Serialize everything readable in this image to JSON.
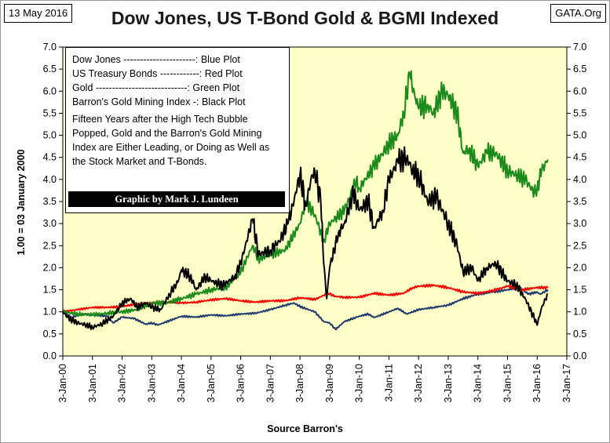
{
  "header": {
    "date": "13 May 2016",
    "source_site": "GATA.Org"
  },
  "legend": {
    "rows": [
      "Dow Jones  ----------------------: Blue Plot",
      "US Treasury Bonds ------------: Red Plot",
      "Gold ----------------------------: Green Plot",
      "Barron's Gold Mining Index -: Black Plot"
    ],
    "note": "Fifteen Years after the High Tech Bubble Popped, Gold and the Barron's Gold Mining Index are Either Leading, or Doing as Well as the Stock Market and T-Bonds.",
    "credit": "Graphic by  Mark J. Lundeen"
  },
  "colors": {
    "plot_background": "#ffffc8",
    "dow": "#1f3a6e",
    "tbond": "#ff0000",
    "gold": "#1a8a1a",
    "bgmi": "#000000"
  },
  "chart_data": {
    "type": "line",
    "title": "Dow Jones, US T-Bond Gold & BGMI Indexed",
    "xlabel": "Source Barron's",
    "ylabel": "1.00 = 03 January 2000",
    "xlim": [
      2000.0,
      2017.0
    ],
    "ylim": [
      0.0,
      7.0
    ],
    "grid": false,
    "y_ticks": [
      "0.0",
      "0.5",
      "1.0",
      "1.5",
      "2.0",
      "2.5",
      "3.0",
      "3.5",
      "4.0",
      "4.5",
      "5.0",
      "5.5",
      "6.0",
      "6.5",
      "7.0"
    ],
    "x_ticks": [
      "3-Jan-00",
      "3-Jan-01",
      "3-Jan-02",
      "3-Jan-03",
      "3-Jan-04",
      "3-Jan-05",
      "3-Jan-06",
      "3-Jan-07",
      "3-Jan-08",
      "3-Jan-09",
      "3-Jan-10",
      "3-Jan-11",
      "3-Jan-12",
      "3-Jan-13",
      "3-Jan-14",
      "3-Jan-15",
      "3-Jan-16",
      "3-Jan-17"
    ],
    "series": [
      {
        "name": "Dow Jones",
        "color": "#1f3a6e",
        "points": [
          [
            2000.0,
            1.0
          ],
          [
            2000.3,
            0.88
          ],
          [
            2000.7,
            0.95
          ],
          [
            2001.0,
            0.93
          ],
          [
            2001.5,
            0.9
          ],
          [
            2001.7,
            0.75
          ],
          [
            2002.0,
            0.88
          ],
          [
            2002.4,
            0.85
          ],
          [
            2002.8,
            0.72
          ],
          [
            2003.0,
            0.75
          ],
          [
            2003.2,
            0.7
          ],
          [
            2003.6,
            0.8
          ],
          [
            2004.0,
            0.9
          ],
          [
            2004.5,
            0.88
          ],
          [
            2005.0,
            0.93
          ],
          [
            2005.5,
            0.91
          ],
          [
            2006.0,
            0.95
          ],
          [
            2006.5,
            0.97
          ],
          [
            2007.0,
            1.05
          ],
          [
            2007.5,
            1.15
          ],
          [
            2007.8,
            1.2
          ],
          [
            2008.0,
            1.12
          ],
          [
            2008.5,
            1.0
          ],
          [
            2008.8,
            0.78
          ],
          [
            2009.0,
            0.75
          ],
          [
            2009.2,
            0.6
          ],
          [
            2009.5,
            0.78
          ],
          [
            2010.0,
            0.9
          ],
          [
            2010.3,
            0.95
          ],
          [
            2010.5,
            0.87
          ],
          [
            2011.0,
            1.0
          ],
          [
            2011.3,
            1.08
          ],
          [
            2011.6,
            0.95
          ],
          [
            2012.0,
            1.05
          ],
          [
            2012.5,
            1.1
          ],
          [
            2013.0,
            1.15
          ],
          [
            2013.5,
            1.3
          ],
          [
            2014.0,
            1.4
          ],
          [
            2014.5,
            1.45
          ],
          [
            2015.0,
            1.5
          ],
          [
            2015.4,
            1.56
          ],
          [
            2015.7,
            1.4
          ],
          [
            2016.0,
            1.45
          ],
          [
            2016.1,
            1.4
          ],
          [
            2016.36,
            1.5
          ]
        ]
      },
      {
        "name": "US Treasury Bonds",
        "color": "#ff0000",
        "points": [
          [
            2000.0,
            1.0
          ],
          [
            2000.5,
            1.05
          ],
          [
            2001.0,
            1.1
          ],
          [
            2001.5,
            1.1
          ],
          [
            2002.0,
            1.12
          ],
          [
            2002.5,
            1.18
          ],
          [
            2003.0,
            1.2
          ],
          [
            2003.5,
            1.22
          ],
          [
            2004.0,
            1.2
          ],
          [
            2004.5,
            1.22
          ],
          [
            2005.0,
            1.27
          ],
          [
            2005.5,
            1.3
          ],
          [
            2006.0,
            1.25
          ],
          [
            2006.5,
            1.22
          ],
          [
            2007.0,
            1.25
          ],
          [
            2007.5,
            1.25
          ],
          [
            2008.0,
            1.32
          ],
          [
            2008.5,
            1.28
          ],
          [
            2008.95,
            1.42
          ],
          [
            2009.2,
            1.35
          ],
          [
            2009.5,
            1.33
          ],
          [
            2010.0,
            1.33
          ],
          [
            2010.5,
            1.42
          ],
          [
            2011.0,
            1.38
          ],
          [
            2011.5,
            1.42
          ],
          [
            2011.8,
            1.55
          ],
          [
            2012.0,
            1.58
          ],
          [
            2012.5,
            1.6
          ],
          [
            2013.0,
            1.55
          ],
          [
            2013.5,
            1.45
          ],
          [
            2014.0,
            1.42
          ],
          [
            2014.5,
            1.48
          ],
          [
            2015.0,
            1.58
          ],
          [
            2015.5,
            1.5
          ],
          [
            2016.0,
            1.55
          ],
          [
            2016.36,
            1.55
          ]
        ]
      },
      {
        "name": "Gold",
        "color": "#1a8a1a",
        "points": [
          [
            2000.0,
            1.0
          ],
          [
            2000.5,
            0.95
          ],
          [
            2001.0,
            0.93
          ],
          [
            2001.5,
            0.97
          ],
          [
            2002.0,
            1.0
          ],
          [
            2002.5,
            1.05
          ],
          [
            2003.0,
            1.2
          ],
          [
            2003.5,
            1.2
          ],
          [
            2004.0,
            1.3
          ],
          [
            2004.5,
            1.4
          ],
          [
            2005.0,
            1.5
          ],
          [
            2005.5,
            1.55
          ],
          [
            2006.0,
            1.9
          ],
          [
            2006.4,
            2.5
          ],
          [
            2006.6,
            2.2
          ],
          [
            2007.0,
            2.3
          ],
          [
            2007.5,
            2.4
          ],
          [
            2008.0,
            3.0
          ],
          [
            2008.2,
            3.5
          ],
          [
            2008.5,
            3.2
          ],
          [
            2008.8,
            2.6
          ],
          [
            2009.0,
            3.0
          ],
          [
            2009.5,
            3.3
          ],
          [
            2009.9,
            4.0
          ],
          [
            2010.0,
            3.8
          ],
          [
            2010.5,
            4.3
          ],
          [
            2011.0,
            4.8
          ],
          [
            2011.3,
            5.0
          ],
          [
            2011.5,
            5.5
          ],
          [
            2011.7,
            6.4
          ],
          [
            2011.9,
            5.8
          ],
          [
            2012.0,
            5.6
          ],
          [
            2012.3,
            5.7
          ],
          [
            2012.5,
            5.5
          ],
          [
            2012.8,
            6.0
          ],
          [
            2013.0,
            5.9
          ],
          [
            2013.3,
            5.5
          ],
          [
            2013.5,
            4.6
          ],
          [
            2013.7,
            4.7
          ],
          [
            2014.0,
            4.3
          ],
          [
            2014.3,
            4.6
          ],
          [
            2014.6,
            4.6
          ],
          [
            2015.0,
            4.2
          ],
          [
            2015.3,
            4.1
          ],
          [
            2015.6,
            4.0
          ],
          [
            2015.9,
            3.7
          ],
          [
            2016.0,
            3.8
          ],
          [
            2016.15,
            4.2
          ],
          [
            2016.36,
            4.45
          ]
        ]
      },
      {
        "name": "Barron's Gold Mining Index",
        "color": "#000000",
        "points": [
          [
            2000.0,
            1.0
          ],
          [
            2000.2,
            0.85
          ],
          [
            2000.5,
            0.75
          ],
          [
            2000.8,
            0.7
          ],
          [
            2001.0,
            0.65
          ],
          [
            2001.3,
            0.72
          ],
          [
            2001.7,
            0.9
          ],
          [
            2002.0,
            1.2
          ],
          [
            2002.3,
            1.3
          ],
          [
            2002.5,
            1.1
          ],
          [
            2002.8,
            1.2
          ],
          [
            2003.0,
            1.1
          ],
          [
            2003.3,
            1.05
          ],
          [
            2003.6,
            1.4
          ],
          [
            2003.9,
            1.7
          ],
          [
            2004.0,
            1.95
          ],
          [
            2004.3,
            1.8
          ],
          [
            2004.5,
            1.5
          ],
          [
            2004.8,
            1.8
          ],
          [
            2005.0,
            1.7
          ],
          [
            2005.4,
            1.6
          ],
          [
            2005.8,
            1.8
          ],
          [
            2006.0,
            2.1
          ],
          [
            2006.4,
            3.1
          ],
          [
            2006.6,
            2.3
          ],
          [
            2007.0,
            2.4
          ],
          [
            2007.3,
            2.6
          ],
          [
            2007.6,
            3.0
          ],
          [
            2007.9,
            3.8
          ],
          [
            2008.0,
            4.1
          ],
          [
            2008.2,
            3.4
          ],
          [
            2008.4,
            4.1
          ],
          [
            2008.5,
            4.2
          ],
          [
            2008.7,
            3.5
          ],
          [
            2008.8,
            2.1
          ],
          [
            2008.9,
            1.3
          ],
          [
            2009.0,
            2.0
          ],
          [
            2009.3,
            2.8
          ],
          [
            2009.5,
            3.0
          ],
          [
            2009.8,
            3.7
          ],
          [
            2010.0,
            3.3
          ],
          [
            2010.3,
            3.5
          ],
          [
            2010.5,
            2.9
          ],
          [
            2010.8,
            3.3
          ],
          [
            2011.0,
            4.0
          ],
          [
            2011.3,
            4.4
          ],
          [
            2011.6,
            4.5
          ],
          [
            2011.8,
            4.2
          ],
          [
            2012.0,
            4.1
          ],
          [
            2012.3,
            3.5
          ],
          [
            2012.6,
            3.6
          ],
          [
            2013.0,
            3.0
          ],
          [
            2013.3,
            2.5
          ],
          [
            2013.5,
            1.9
          ],
          [
            2013.8,
            2.0
          ],
          [
            2014.0,
            1.7
          ],
          [
            2014.3,
            2.0
          ],
          [
            2014.6,
            2.1
          ],
          [
            2015.0,
            1.7
          ],
          [
            2015.3,
            1.6
          ],
          [
            2015.6,
            1.3
          ],
          [
            2015.9,
            0.85
          ],
          [
            2016.0,
            0.7
          ],
          [
            2016.15,
            1.1
          ],
          [
            2016.36,
            1.4
          ]
        ]
      }
    ]
  }
}
